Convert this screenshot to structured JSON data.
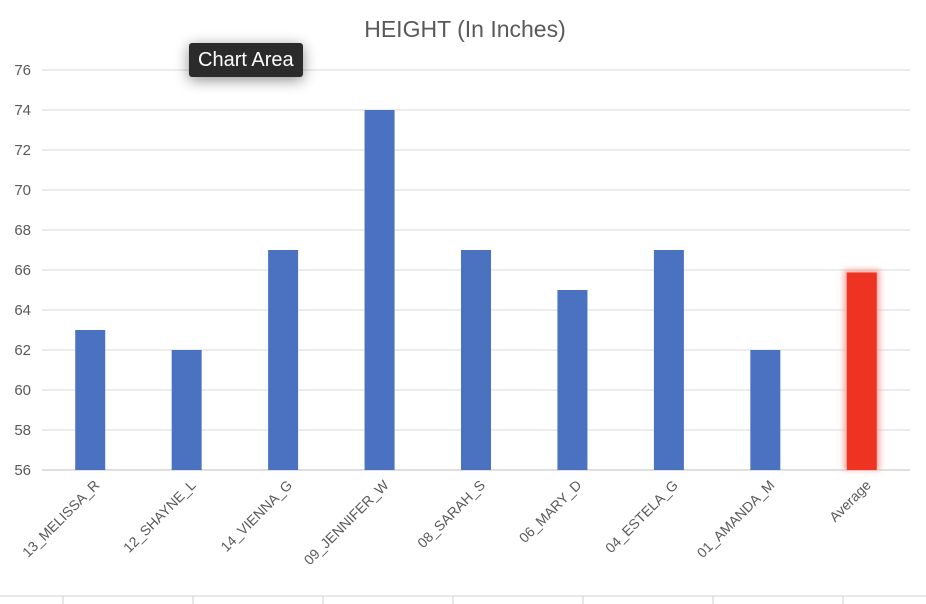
{
  "tooltip": {
    "label": "Chart Area"
  },
  "chart_data": {
    "type": "bar",
    "title": "HEIGHT (In Inches)",
    "xlabel": "",
    "ylabel": "",
    "ylim": [
      56,
      76
    ],
    "yticks": [
      56,
      58,
      60,
      62,
      64,
      66,
      68,
      70,
      72,
      74,
      76
    ],
    "grid": true,
    "categories": [
      "13_MELISSA_R",
      "12_SHAYNE_L",
      "14_VIENNA_G",
      "09_JENNIFER_W",
      "08_SARAH_S",
      "06_MARY_D",
      "04_ESTELA_G",
      "01_AMANDA_M",
      "Average"
    ],
    "values": [
      63,
      62,
      67,
      74,
      67,
      65,
      67,
      62,
      65.875
    ],
    "colors": {
      "bar": "#4a72c0",
      "highlight": "#ee3322",
      "highlight_glow": "#f7a9a2"
    },
    "highlight_category": "Average"
  }
}
